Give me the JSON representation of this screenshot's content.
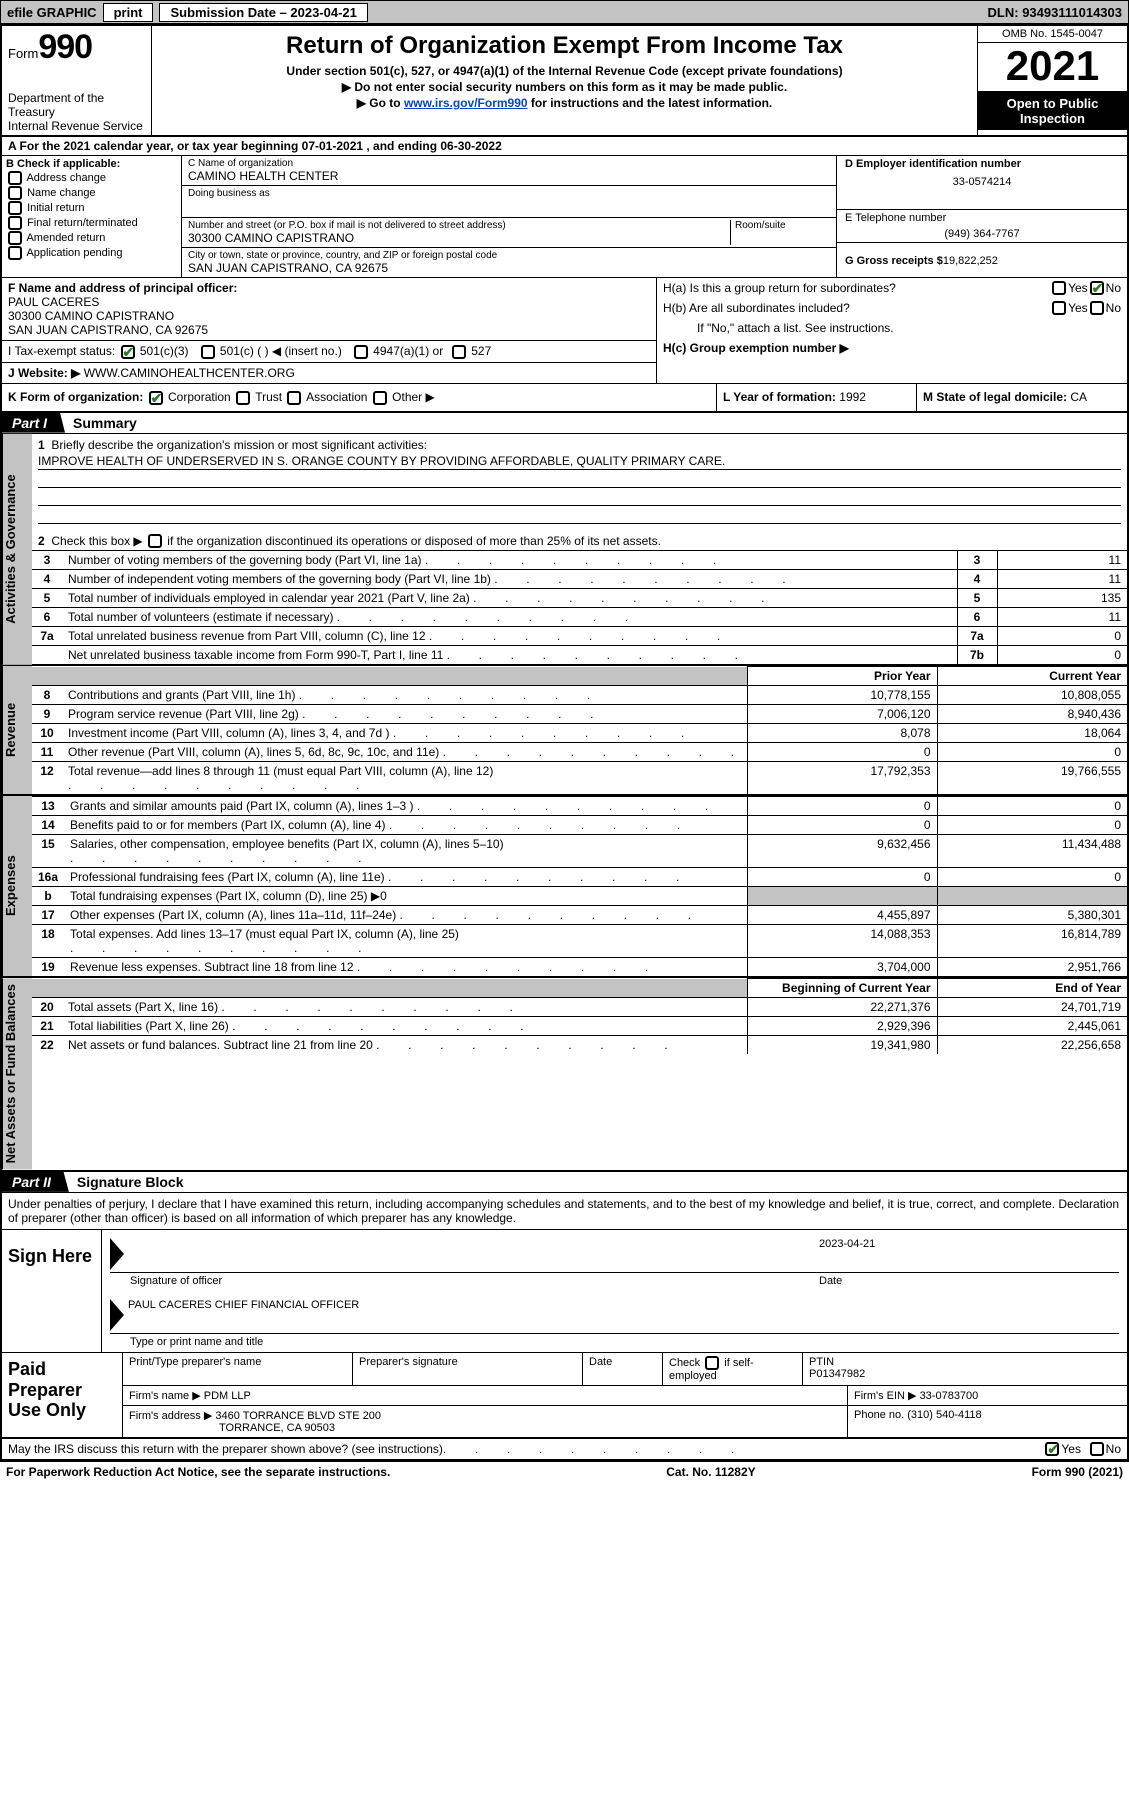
{
  "topbar": {
    "efile": "efile GRAPHIC",
    "print": "print",
    "submission": "Submission Date – 2023-04-21",
    "dln": "DLN: 93493111014303"
  },
  "header": {
    "form_prefix": "Form",
    "form_number": "990",
    "dept": "Department of the Treasury",
    "irs": "Internal Revenue Service",
    "title": "Return of Organization Exempt From Income Tax",
    "sub1": "Under section 501(c), 527, or 4947(a)(1) of the Internal Revenue Code (except private foundations)",
    "sub2": "▶ Do not enter social security numbers on this form as it may be made public.",
    "sub3_pre": "▶ Go to ",
    "sub3_link": "www.irs.gov/Form990",
    "sub3_post": " for instructions and the latest information.",
    "omb": "OMB No. 1545-0047",
    "year": "2021",
    "open_public": "Open to Public Inspection"
  },
  "sectionA": "A For the 2021 calendar year, or tax year beginning 07-01-2021    , and ending 06-30-2022",
  "colB": {
    "label": "B Check if applicable:",
    "items": [
      "Address change",
      "Name change",
      "Initial return",
      "Final return/terminated",
      "Amended return",
      "Application pending"
    ]
  },
  "colC": {
    "c_label": "C Name of organization",
    "c_value": "CAMINO HEALTH CENTER",
    "dba_label": "Doing business as",
    "addr_label": "Number and street (or P.O. box if mail is not delivered to street address)",
    "room_label": "Room/suite",
    "addr_value": "30300 CAMINO CAPISTRANO",
    "city_label": "City or town, state or province, country, and ZIP or foreign postal code",
    "city_value": "SAN JUAN CAPISTRANO, CA  92675"
  },
  "colD": {
    "d_label": "D Employer identification number",
    "d_value": "33-0574214",
    "e_label": "E Telephone number",
    "e_value": "(949) 364-7767",
    "g_label": "G Gross receipts $",
    "g_value": "19,822,252"
  },
  "fBlock": {
    "label": "F  Name and address of principal officer:",
    "name": "PAUL CACERES",
    "addr1": "30300 CAMINO CAPISTRANO",
    "addr2": "SAN JUAN CAPISTRANO, CA  92675"
  },
  "hBlock": {
    "ha": "H(a)  Is this a group return for subordinates?",
    "hb": "H(b)  Are all subordinates included?",
    "hb_note": "If \"No,\" attach a list. See instructions.",
    "hc": "H(c)  Group exemption number ▶"
  },
  "iBlock": {
    "label": "I    Tax-exempt status:",
    "opt1": "501(c)(3)",
    "opt2": "501(c) (  ) ◀ (insert no.)",
    "opt3": "4947(a)(1) or",
    "opt4": "527"
  },
  "jBlock": {
    "label": "J    Website: ▶",
    "value": "WWW.CAMINOHEALTHCENTER.ORG"
  },
  "kBlock": {
    "label": "K Form of organization:",
    "opts": [
      "Corporation",
      "Trust",
      "Association",
      "Other ▶"
    ],
    "l_label": "L Year of formation:",
    "l_value": "1992",
    "m_label": "M State of legal domicile:",
    "m_value": "CA"
  },
  "part1": {
    "tab": "Part I",
    "title": "Summary",
    "q1": "Briefly describe the organization's mission or most significant activities:",
    "q1_text": "IMPROVE HEALTH OF UNDERSERVED IN S. ORANGE COUNTY BY PROVIDING AFFORDABLE, QUALITY PRIMARY CARE.",
    "q2": "Check this box ▶             if the organization discontinued its operations or disposed of more than 25% of its net assets.",
    "rows_top": [
      {
        "n": "3",
        "txt": "Number of voting members of the governing body (Part VI, line 1a)",
        "num": "3",
        "val": "11"
      },
      {
        "n": "4",
        "txt": "Number of independent voting members of the governing body (Part VI, line 1b)",
        "num": "4",
        "val": "11"
      },
      {
        "n": "5",
        "txt": "Total number of individuals employed in calendar year 2021 (Part V, line 2a)",
        "num": "5",
        "val": "135"
      },
      {
        "n": "6",
        "txt": "Total number of volunteers (estimate if necessary)",
        "num": "6",
        "val": "11"
      },
      {
        "n": "7a",
        "txt": "Total unrelated business revenue from Part VIII, column (C), line 12",
        "num": "7a",
        "val": "0"
      },
      {
        "n": "",
        "txt": "Net unrelated business taxable income from Form 990-T, Part I, line 11",
        "num": "7b",
        "val": "0"
      }
    ],
    "head_prior": "Prior Year",
    "head_current": "Current Year",
    "rev": [
      {
        "n": "8",
        "txt": "Contributions and grants (Part VIII, line 1h)",
        "p": "10,778,155",
        "c": "10,808,055"
      },
      {
        "n": "9",
        "txt": "Program service revenue (Part VIII, line 2g)",
        "p": "7,006,120",
        "c": "8,940,436"
      },
      {
        "n": "10",
        "txt": "Investment income (Part VIII, column (A), lines 3, 4, and 7d )",
        "p": "8,078",
        "c": "18,064"
      },
      {
        "n": "11",
        "txt": "Other revenue (Part VIII, column (A), lines 5, 6d, 8c, 9c, 10c, and 11e)",
        "p": "0",
        "c": "0"
      },
      {
        "n": "12",
        "txt": "Total revenue—add lines 8 through 11 (must equal Part VIII, column (A), line 12)",
        "p": "17,792,353",
        "c": "19,766,555"
      }
    ],
    "exp": [
      {
        "n": "13",
        "txt": "Grants and similar amounts paid (Part IX, column (A), lines 1–3 )",
        "p": "0",
        "c": "0"
      },
      {
        "n": "14",
        "txt": "Benefits paid to or for members (Part IX, column (A), line 4)",
        "p": "0",
        "c": "0"
      },
      {
        "n": "15",
        "txt": "Salaries, other compensation, employee benefits (Part IX, column (A), lines 5–10)",
        "p": "9,632,456",
        "c": "11,434,488"
      },
      {
        "n": "16a",
        "txt": "Professional fundraising fees (Part IX, column (A), line 11e)",
        "p": "0",
        "c": "0"
      },
      {
        "n": "b",
        "txt": "Total fundraising expenses (Part IX, column (D), line 25) ▶0",
        "p": "",
        "c": "",
        "shaded": true
      },
      {
        "n": "17",
        "txt": "Other expenses (Part IX, column (A), lines 11a–11d, 11f–24e)",
        "p": "4,455,897",
        "c": "5,380,301"
      },
      {
        "n": "18",
        "txt": "Total expenses. Add lines 13–17 (must equal Part IX, column (A), line 25)",
        "p": "14,088,353",
        "c": "16,814,789"
      },
      {
        "n": "19",
        "txt": "Revenue less expenses. Subtract line 18 from line 12",
        "p": "3,704,000",
        "c": "2,951,766"
      }
    ],
    "head_begin": "Beginning of Current Year",
    "head_end": "End of Year",
    "net": [
      {
        "n": "20",
        "txt": "Total assets (Part X, line 16)",
        "p": "22,271,376",
        "c": "24,701,719"
      },
      {
        "n": "21",
        "txt": "Total liabilities (Part X, line 26)",
        "p": "2,929,396",
        "c": "2,445,061"
      },
      {
        "n": "22",
        "txt": "Net assets or fund balances. Subtract line 21 from line 20",
        "p": "19,341,980",
        "c": "22,256,658"
      }
    ]
  },
  "part2": {
    "tab": "Part II",
    "title": "Signature Block",
    "intro": "Under penalties of perjury, I declare that I have examined this return, including accompanying schedules and statements, and to the best of my knowledge and belief, it is true, correct, and complete. Declaration of preparer (other than officer) is based on all information of which preparer has any knowledge."
  },
  "sign": {
    "label": "Sign Here",
    "sig_label": "Signature of officer",
    "date_label": "Date",
    "date_value": "2023-04-21",
    "name": "PAUL CACERES CHIEF FINANCIAL OFFICER",
    "name_label": "Type or print name and title"
  },
  "paid": {
    "label": "Paid Preparer Use Only",
    "h1": "Print/Type preparer's name",
    "h2": "Preparer's signature",
    "h3": "Date",
    "h4_check": "Check         if self-employed",
    "h5": "PTIN",
    "ptin": "P01347982",
    "firm_name_label": "Firm's name    ▶",
    "firm_name": "PDM LLP",
    "firm_ein_label": "Firm's EIN ▶",
    "firm_ein": "33-0783700",
    "firm_addr_label": "Firm's address ▶",
    "firm_addr1": "3460 TORRANCE BLVD STE 200",
    "firm_addr2": "TORRANCE, CA 90503",
    "phone_label": "Phone no.",
    "phone": "(310) 540-4118"
  },
  "irs_q": "May the IRS discuss this return with the preparer shown above? (see instructions)",
  "footer": {
    "left": "For Paperwork Reduction Act Notice, see the separate instructions.",
    "mid": "Cat. No. 11282Y",
    "right_pre": "Form ",
    "right_b": "990",
    "right_post": " (2021)"
  },
  "side_labels": {
    "act": "Activities & Governance",
    "rev": "Revenue",
    "exp": "Expenses",
    "net": "Net Assets or Fund Balances"
  },
  "colors": {
    "grey": "#c3c3c3",
    "link": "#0645c8",
    "check": "#2a7a2a"
  }
}
